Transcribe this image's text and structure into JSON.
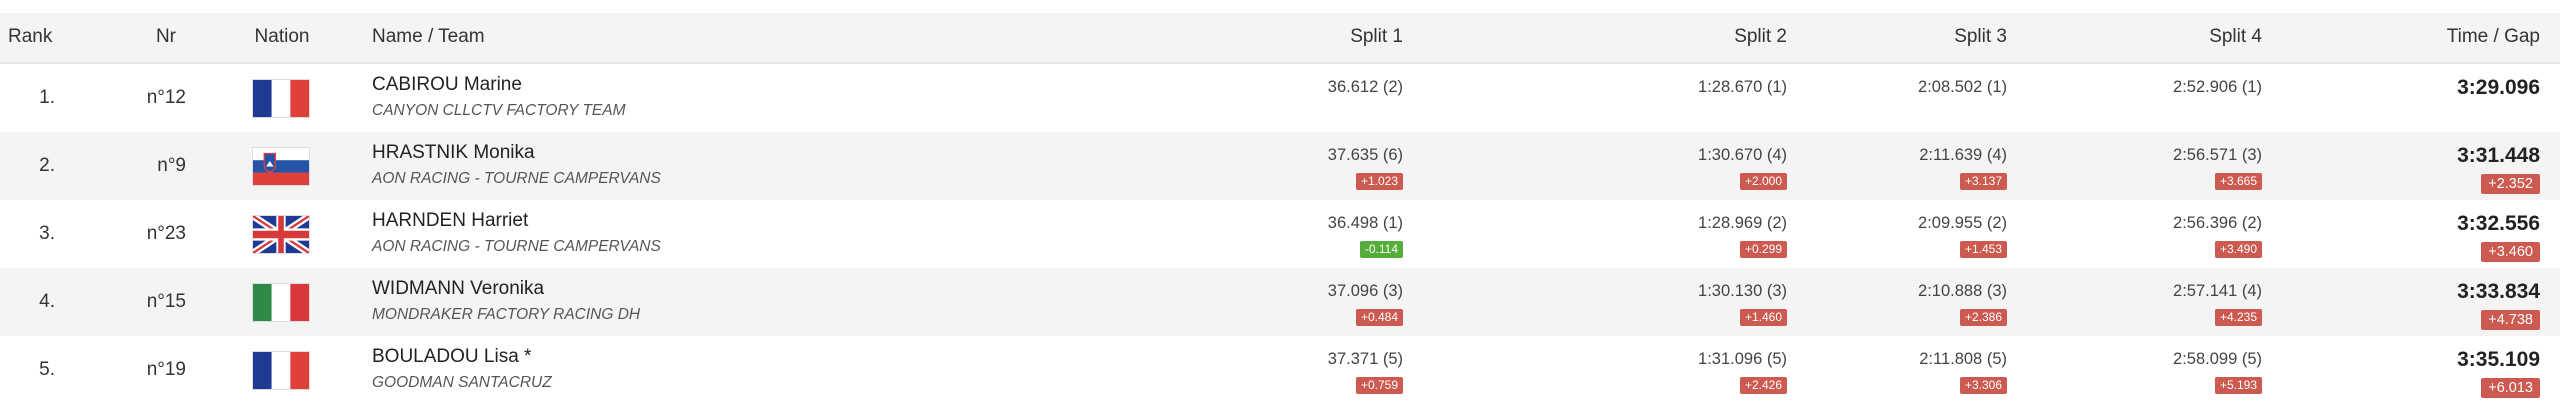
{
  "header": {
    "rank": "Rank",
    "nr": "Nr",
    "nation": "Nation",
    "name_team": "Name / Team",
    "split1": "Split 1",
    "split2": "Split 2",
    "split3": "Split 3",
    "split4": "Split 4",
    "time_gap": "Time / Gap"
  },
  "colors": {
    "gap_positive": "#cd5a50",
    "gap_negative": "#55ae3a",
    "row_alt": "#f4f4f4"
  },
  "rows": [
    {
      "rank": "1.",
      "nr": "n°12",
      "nation": "France",
      "name": "CABIROU Marine",
      "team": "CANYON CLLCTV FACTORY TEAM",
      "splits": [
        {
          "t": "36.612 (2)",
          "gap": ""
        },
        {
          "t": "1:28.670 (1)",
          "gap": ""
        },
        {
          "t": "2:08.502 (1)",
          "gap": ""
        },
        {
          "t": "2:52.906 (1)",
          "gap": ""
        }
      ],
      "time": "3:29.096",
      "gap": ""
    },
    {
      "rank": "2.",
      "nr": "n°9",
      "nation": "Slovenia",
      "name": "HRASTNIK Monika",
      "team": "AON RACING - TOURNE CAMPERVANS",
      "splits": [
        {
          "t": "37.635 (6)",
          "gap": "+1.023"
        },
        {
          "t": "1:30.670 (4)",
          "gap": "+2.000"
        },
        {
          "t": "2:11.639 (4)",
          "gap": "+3.137"
        },
        {
          "t": "2:56.571 (3)",
          "gap": "+3.665"
        }
      ],
      "time": "3:31.448",
      "gap": "+2.352"
    },
    {
      "rank": "3.",
      "nr": "n°23",
      "nation": "United Kingdom",
      "name": "HARNDEN Harriet",
      "team": "AON RACING - TOURNE CAMPERVANS",
      "splits": [
        {
          "t": "36.498 (1)",
          "gap": "-0.114"
        },
        {
          "t": "1:28.969 (2)",
          "gap": "+0.299"
        },
        {
          "t": "2:09.955 (2)",
          "gap": "+1.453"
        },
        {
          "t": "2:56.396 (2)",
          "gap": "+3.490"
        }
      ],
      "time": "3:32.556",
      "gap": "+3.460"
    },
    {
      "rank": "4.",
      "nr": "n°15",
      "nation": "Italy",
      "name": "WIDMANN Veronika",
      "team": "MONDRAKER FACTORY RACING DH",
      "splits": [
        {
          "t": "37.096 (3)",
          "gap": "+0.484"
        },
        {
          "t": "1:30.130 (3)",
          "gap": "+1.460"
        },
        {
          "t": "2:10.888 (3)",
          "gap": "+2.386"
        },
        {
          "t": "2:57.141 (4)",
          "gap": "+4.235"
        }
      ],
      "time": "3:33.834",
      "gap": "+4.738"
    },
    {
      "rank": "5.",
      "nr": "n°19",
      "nation": "France",
      "name": "BOULADOU Lisa *",
      "team": "GOODMAN SANTACRUZ",
      "splits": [
        {
          "t": "37.371 (5)",
          "gap": "+0.759"
        },
        {
          "t": "1:31.096 (5)",
          "gap": "+2.426"
        },
        {
          "t": "2:11.808 (5)",
          "gap": "+3.306"
        },
        {
          "t": "2:58.099 (5)",
          "gap": "+5.193"
        }
      ],
      "time": "3:35.109",
      "gap": "+6.013"
    }
  ]
}
